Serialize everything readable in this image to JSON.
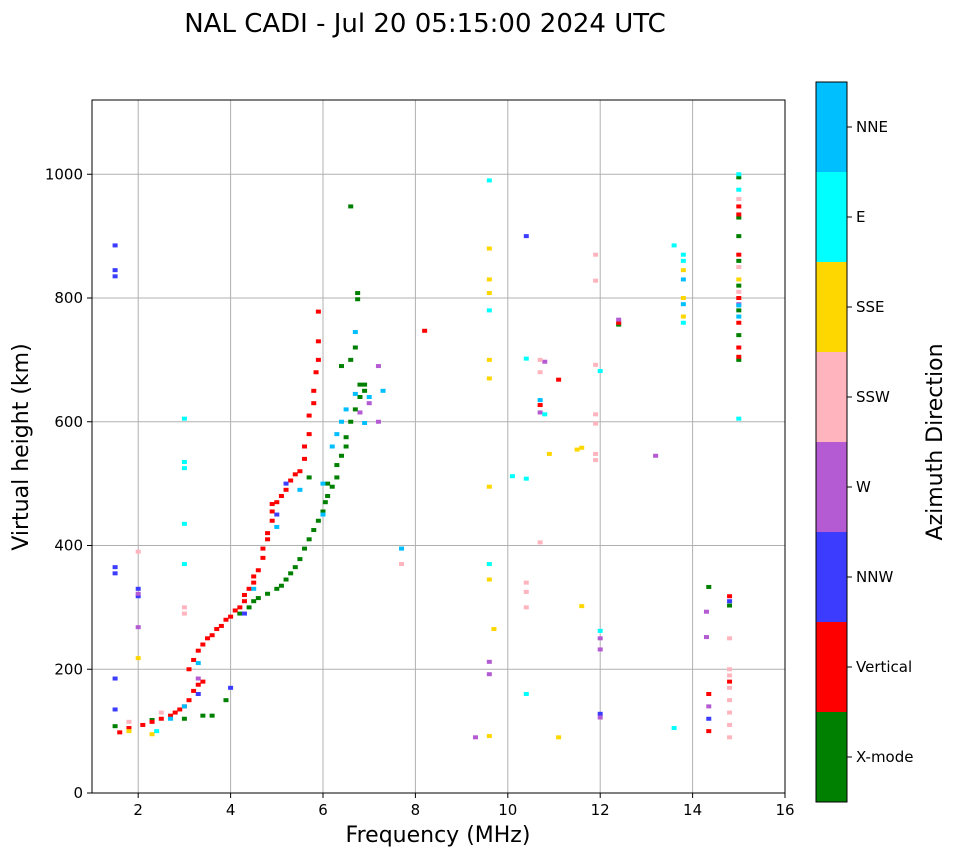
{
  "chart_data": {
    "type": "scatter",
    "title": "NAL CADI - Jul 20 05:15:00 2024 UTC",
    "xlabel": "Frequency (MHz)",
    "ylabel": "Virtual height (km)",
    "xlim": [
      1,
      16
    ],
    "ylim": [
      0,
      1120
    ],
    "xticks": [
      2,
      4,
      6,
      8,
      10,
      12,
      14,
      16
    ],
    "yticks": [
      0,
      200,
      400,
      600,
      800,
      1000
    ],
    "grid": true,
    "colorbar": {
      "title": "Azimuth Direction",
      "categories": [
        {
          "name": "X-mode",
          "color": "#008000"
        },
        {
          "name": "Vertical",
          "color": "#ff0000"
        },
        {
          "name": "NNW",
          "color": "#3c3cff"
        },
        {
          "name": "W",
          "color": "#b45ad2"
        },
        {
          "name": "SSW",
          "color": "#ffb4be"
        },
        {
          "name": "SSE",
          "color": "#ffd700"
        },
        {
          "name": "E",
          "color": "#00ffff"
        },
        {
          "name": "NNE",
          "color": "#00bfff"
        }
      ]
    },
    "series": [
      {
        "name": "X-mode",
        "points": [
          [
            1.5,
            108
          ],
          [
            2.3,
            118
          ],
          [
            3.0,
            120
          ],
          [
            3.4,
            125
          ],
          [
            3.6,
            125
          ],
          [
            3.9,
            150
          ],
          [
            4.2,
            290
          ],
          [
            4.4,
            300
          ],
          [
            4.5,
            310
          ],
          [
            4.6,
            315
          ],
          [
            4.8,
            322
          ],
          [
            5.0,
            330
          ],
          [
            5.1,
            335
          ],
          [
            5.2,
            345
          ],
          [
            5.3,
            355
          ],
          [
            5.4,
            365
          ],
          [
            5.5,
            378
          ],
          [
            5.6,
            395
          ],
          [
            5.7,
            410
          ],
          [
            5.8,
            425
          ],
          [
            5.9,
            440
          ],
          [
            6.0,
            455
          ],
          [
            6.05,
            470
          ],
          [
            6.1,
            480
          ],
          [
            6.2,
            495
          ],
          [
            6.3,
            510
          ],
          [
            6.3,
            530
          ],
          [
            6.4,
            545
          ],
          [
            6.5,
            560
          ],
          [
            6.5,
            575
          ],
          [
            6.6,
            600
          ],
          [
            6.7,
            620
          ],
          [
            6.8,
            640
          ],
          [
            6.8,
            660
          ],
          [
            6.9,
            650
          ],
          [
            6.4,
            690
          ],
          [
            6.6,
            700
          ],
          [
            6.7,
            720
          ],
          [
            6.9,
            660
          ],
          [
            6.6,
            948
          ],
          [
            6.75,
            808
          ],
          [
            6.75,
            798
          ],
          [
            5.7,
            510
          ],
          [
            6.1,
            500
          ],
          [
            12.4,
            757
          ],
          [
            14.35,
            333
          ],
          [
            14.8,
            303
          ],
          [
            15.0,
            700
          ],
          [
            15.0,
            740
          ],
          [
            15.0,
            780
          ],
          [
            15.0,
            820
          ],
          [
            15.0,
            860
          ],
          [
            15.0,
            900
          ],
          [
            15.0,
            930
          ],
          [
            15.0,
            995
          ]
        ]
      },
      {
        "name": "Vertical",
        "points": [
          [
            1.6,
            98
          ],
          [
            1.8,
            105
          ],
          [
            2.1,
            110
          ],
          [
            2.3,
            115
          ],
          [
            2.5,
            120
          ],
          [
            2.7,
            125
          ],
          [
            2.8,
            130
          ],
          [
            2.9,
            135
          ],
          [
            3.0,
            140
          ],
          [
            3.1,
            150
          ],
          [
            3.2,
            165
          ],
          [
            3.3,
            175
          ],
          [
            3.4,
            180
          ],
          [
            3.1,
            200
          ],
          [
            3.2,
            215
          ],
          [
            3.3,
            230
          ],
          [
            3.4,
            240
          ],
          [
            3.5,
            250
          ],
          [
            3.6,
            255
          ],
          [
            3.7,
            265
          ],
          [
            3.8,
            270
          ],
          [
            3.9,
            280
          ],
          [
            4.0,
            285
          ],
          [
            4.1,
            295
          ],
          [
            4.2,
            300
          ],
          [
            4.3,
            310
          ],
          [
            4.3,
            320
          ],
          [
            4.4,
            330
          ],
          [
            4.5,
            340
          ],
          [
            4.5,
            350
          ],
          [
            4.6,
            360
          ],
          [
            4.7,
            380
          ],
          [
            4.7,
            395
          ],
          [
            4.8,
            410
          ],
          [
            4.8,
            420
          ],
          [
            4.9,
            440
          ],
          [
            4.9,
            455
          ],
          [
            5.0,
            470
          ],
          [
            5.1,
            480
          ],
          [
            5.2,
            490
          ],
          [
            5.3,
            505
          ],
          [
            5.4,
            515
          ],
          [
            5.5,
            520
          ],
          [
            5.6,
            540
          ],
          [
            5.6,
            560
          ],
          [
            5.7,
            580
          ],
          [
            5.7,
            610
          ],
          [
            5.8,
            630
          ],
          [
            5.8,
            650
          ],
          [
            5.85,
            680
          ],
          [
            5.9,
            700
          ],
          [
            5.9,
            730
          ],
          [
            5.9,
            778
          ],
          [
            4.9,
            467
          ],
          [
            8.2,
            747
          ],
          [
            11.1,
            668
          ],
          [
            10.7,
            627
          ],
          [
            12.4,
            760
          ],
          [
            14.35,
            160
          ],
          [
            14.35,
            100
          ],
          [
            14.8,
            180
          ],
          [
            14.8,
            318
          ],
          [
            15.0,
            705
          ],
          [
            15.0,
            720
          ],
          [
            15.0,
            760
          ],
          [
            15.0,
            800
          ],
          [
            15.0,
            870
          ],
          [
            15.0,
            935
          ],
          [
            15.0,
            948
          ]
        ]
      },
      {
        "name": "NNW",
        "points": [
          [
            1.5,
            885
          ],
          [
            1.5,
            845
          ],
          [
            1.5,
            835
          ],
          [
            1.5,
            365
          ],
          [
            1.5,
            355
          ],
          [
            1.5,
            185
          ],
          [
            1.5,
            135
          ],
          [
            2.0,
            330
          ],
          [
            2.0,
            318
          ],
          [
            3.3,
            160
          ],
          [
            4.0,
            170
          ],
          [
            4.3,
            290
          ],
          [
            5.0,
            450
          ],
          [
            5.2,
            500
          ],
          [
            10.4,
            900
          ],
          [
            12.0,
            128
          ],
          [
            14.35,
            120
          ],
          [
            14.8,
            310
          ]
        ]
      },
      {
        "name": "W",
        "points": [
          [
            2.0,
            268
          ],
          [
            2.0,
            322
          ],
          [
            3.3,
            185
          ],
          [
            6.8,
            615
          ],
          [
            7.0,
            630
          ],
          [
            7.2,
            690
          ],
          [
            7.2,
            600
          ],
          [
            10.8,
            697
          ],
          [
            10.7,
            615
          ],
          [
            12.0,
            250
          ],
          [
            12.0,
            232
          ],
          [
            12.0,
            122
          ],
          [
            12.4,
            765
          ],
          [
            13.2,
            545
          ],
          [
            9.3,
            90
          ],
          [
            9.6,
            212
          ],
          [
            9.6,
            192
          ],
          [
            14.3,
            293
          ],
          [
            14.3,
            252
          ],
          [
            14.35,
            140
          ],
          [
            15.0,
            790
          ]
        ]
      },
      {
        "name": "SSW",
        "points": [
          [
            1.8,
            115
          ],
          [
            2.0,
            390
          ],
          [
            3.0,
            300
          ],
          [
            3.0,
            290
          ],
          [
            2.5,
            130
          ],
          [
            7.7,
            370
          ],
          [
            10.4,
            340
          ],
          [
            10.4,
            325
          ],
          [
            10.4,
            300
          ],
          [
            10.7,
            405
          ],
          [
            10.7,
            700
          ],
          [
            10.7,
            680
          ],
          [
            11.9,
            870
          ],
          [
            11.9,
            828
          ],
          [
            11.9,
            692
          ],
          [
            11.9,
            612
          ],
          [
            11.9,
            597
          ],
          [
            11.9,
            548
          ],
          [
            11.9,
            538
          ],
          [
            14.8,
            90
          ],
          [
            14.8,
            110
          ],
          [
            14.8,
            130
          ],
          [
            14.8,
            150
          ],
          [
            14.8,
            170
          ],
          [
            14.8,
            190
          ],
          [
            14.8,
            200
          ],
          [
            14.8,
            250
          ],
          [
            15.0,
            810
          ],
          [
            15.0,
            850
          ],
          [
            15.0,
            960
          ]
        ]
      },
      {
        "name": "SSE",
        "points": [
          [
            2.0,
            218
          ],
          [
            1.8,
            100
          ],
          [
            2.3,
            95
          ],
          [
            9.6,
            880
          ],
          [
            9.6,
            830
          ],
          [
            9.6,
            808
          ],
          [
            9.6,
            700
          ],
          [
            9.6,
            670
          ],
          [
            9.6,
            495
          ],
          [
            9.6,
            370
          ],
          [
            9.6,
            345
          ],
          [
            9.7,
            265
          ],
          [
            9.6,
            92
          ],
          [
            10.9,
            548
          ],
          [
            11.1,
            90
          ],
          [
            11.5,
            555
          ],
          [
            11.6,
            558
          ],
          [
            11.6,
            302
          ],
          [
            13.8,
            800
          ],
          [
            13.8,
            770
          ],
          [
            13.8,
            845
          ],
          [
            15.0,
            830
          ]
        ]
      },
      {
        "name": "E",
        "points": [
          [
            3.0,
            605
          ],
          [
            3.0,
            535
          ],
          [
            3.0,
            525
          ],
          [
            3.0,
            435
          ],
          [
            3.0,
            370
          ],
          [
            2.4,
            100
          ],
          [
            9.6,
            990
          ],
          [
            9.6,
            780
          ],
          [
            9.6,
            370
          ],
          [
            10.1,
            512
          ],
          [
            10.4,
            508
          ],
          [
            10.4,
            702
          ],
          [
            10.4,
            160
          ],
          [
            10.8,
            612
          ],
          [
            12.0,
            262
          ],
          [
            12.0,
            682
          ],
          [
            13.6,
            885
          ],
          [
            13.6,
            105
          ],
          [
            13.8,
            870
          ],
          [
            13.8,
            860
          ],
          [
            13.8,
            760
          ],
          [
            15.0,
            605
          ],
          [
            15.0,
            1000
          ],
          [
            15.0,
            975
          ]
        ]
      },
      {
        "name": "NNE",
        "points": [
          [
            2.7,
            120
          ],
          [
            3.0,
            140
          ],
          [
            3.3,
            210
          ],
          [
            4.5,
            330
          ],
          [
            5.0,
            430
          ],
          [
            5.5,
            490
          ],
          [
            6.0,
            450
          ],
          [
            6.0,
            500
          ],
          [
            6.2,
            560
          ],
          [
            6.3,
            580
          ],
          [
            6.4,
            600
          ],
          [
            6.5,
            620
          ],
          [
            6.7,
            645
          ],
          [
            6.7,
            745
          ],
          [
            6.9,
            598
          ],
          [
            7.0,
            640
          ],
          [
            7.3,
            650
          ],
          [
            7.7,
            395
          ],
          [
            10.7,
            635
          ],
          [
            13.8,
            790
          ],
          [
            13.8,
            830
          ],
          [
            15.0,
            788
          ],
          [
            15.0,
            770
          ]
        ]
      }
    ]
  }
}
